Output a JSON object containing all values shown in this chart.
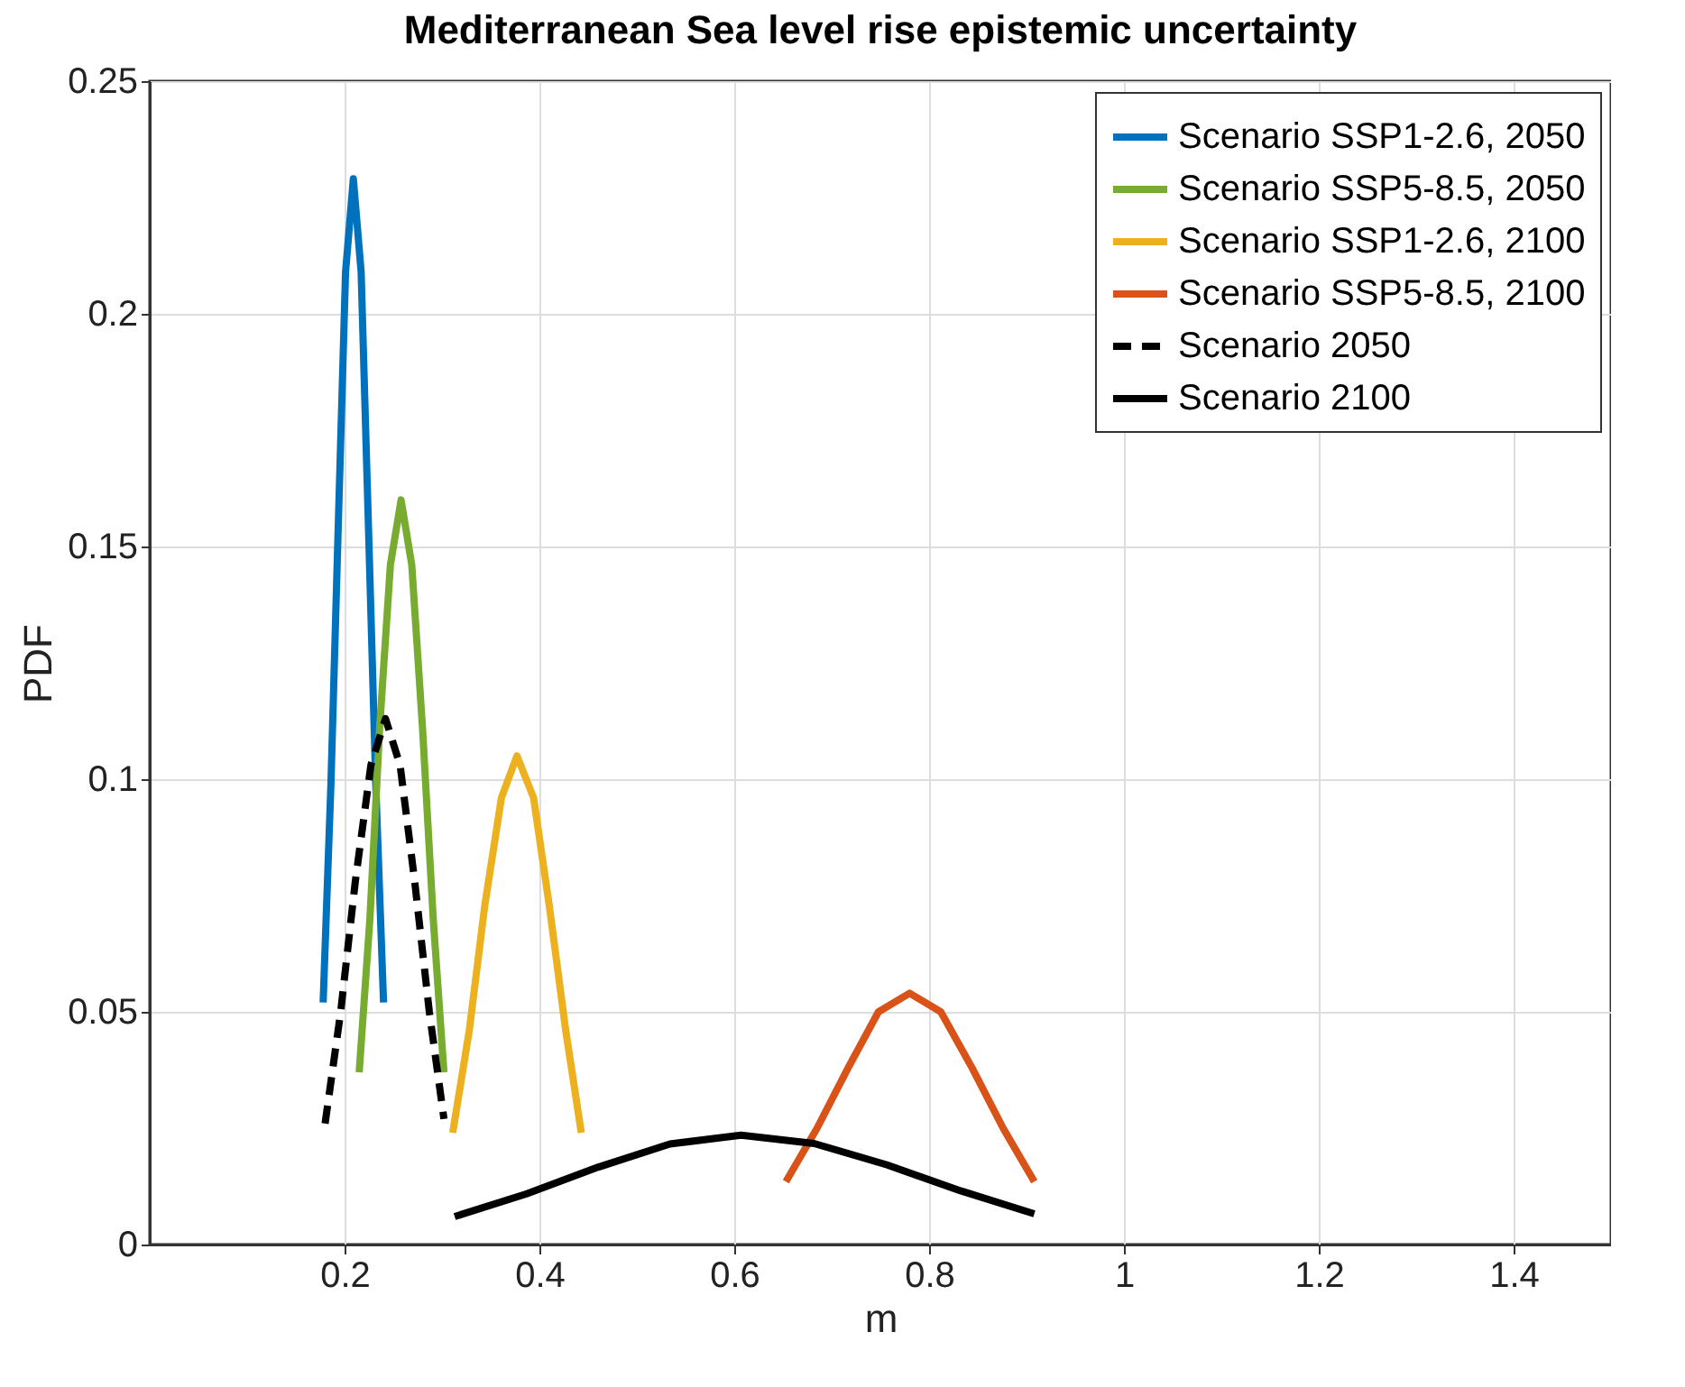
{
  "chart_data": {
    "type": "line",
    "title": "Mediterranean Sea level rise epistemic uncertainty",
    "xlabel": "m",
    "ylabel": "PDF",
    "xlim": [
      0,
      1.5
    ],
    "xticks": [
      0.2,
      0.4,
      0.6,
      0.8,
      1,
      1.2,
      1.4
    ],
    "ylim": [
      0,
      0.25
    ],
    "yticks": [
      0,
      0.05,
      0.1,
      0.15,
      0.2,
      0.25
    ],
    "grid": true,
    "legend": "top right",
    "marker": "none",
    "series": [
      {
        "name": "Scenario SSP1-2.6, 2050",
        "color": "#0072bd",
        "line_style": "solid",
        "x": [
          0.178,
          0.186,
          0.194,
          0.201,
          0.209,
          0.217,
          0.224,
          0.232,
          0.24
        ],
        "values": [
          0.052,
          0.099,
          0.158,
          0.209,
          0.229,
          0.209,
          0.158,
          0.099,
          0.052
        ]
      },
      {
        "name": "Scenario SSP5-8.5, 2050",
        "color": "#77ac30",
        "line_style": "solid",
        "x": [
          0.215,
          0.226,
          0.236,
          0.247,
          0.258,
          0.269,
          0.28,
          0.291,
          0.302
        ],
        "values": [
          0.037,
          0.07,
          0.111,
          0.146,
          0.16,
          0.146,
          0.111,
          0.07,
          0.037
        ]
      },
      {
        "name": "Scenario SSP1-2.6, 2100",
        "color": "#edb120",
        "line_style": "solid",
        "x": [
          0.311,
          0.328,
          0.344,
          0.361,
          0.377,
          0.394,
          0.41,
          0.427,
          0.443
        ],
        "values": [
          0.024,
          0.046,
          0.073,
          0.096,
          0.105,
          0.096,
          0.073,
          0.046,
          0.024
        ]
      },
      {
        "name": "Scenario SSP5-8.5, 2100",
        "color": "#d95319",
        "line_style": "solid",
        "x": [
          0.653,
          0.685,
          0.717,
          0.748,
          0.78,
          0.812,
          0.844,
          0.876,
          0.908
        ],
        "values": [
          0.0135,
          0.025,
          0.038,
          0.05,
          0.054,
          0.05,
          0.038,
          0.025,
          0.0135
        ]
      },
      {
        "name": "Scenario 2050",
        "color": "#000000",
        "line_style": "dashed",
        "x": [
          0.18,
          0.196,
          0.211,
          0.227,
          0.242,
          0.257,
          0.272,
          0.287,
          0.302
        ],
        "values": [
          0.026,
          0.05,
          0.078,
          0.103,
          0.113,
          0.103,
          0.078,
          0.05,
          0.027
        ]
      },
      {
        "name": "Scenario 2100",
        "color": "#000000",
        "line_style": "solid",
        "x": [
          0.313,
          0.387,
          0.46,
          0.534,
          0.607,
          0.682,
          0.757,
          0.833,
          0.908
        ],
        "values": [
          0.006,
          0.0109,
          0.0166,
          0.0216,
          0.0235,
          0.0217,
          0.0171,
          0.0115,
          0.0066
        ]
      }
    ]
  }
}
